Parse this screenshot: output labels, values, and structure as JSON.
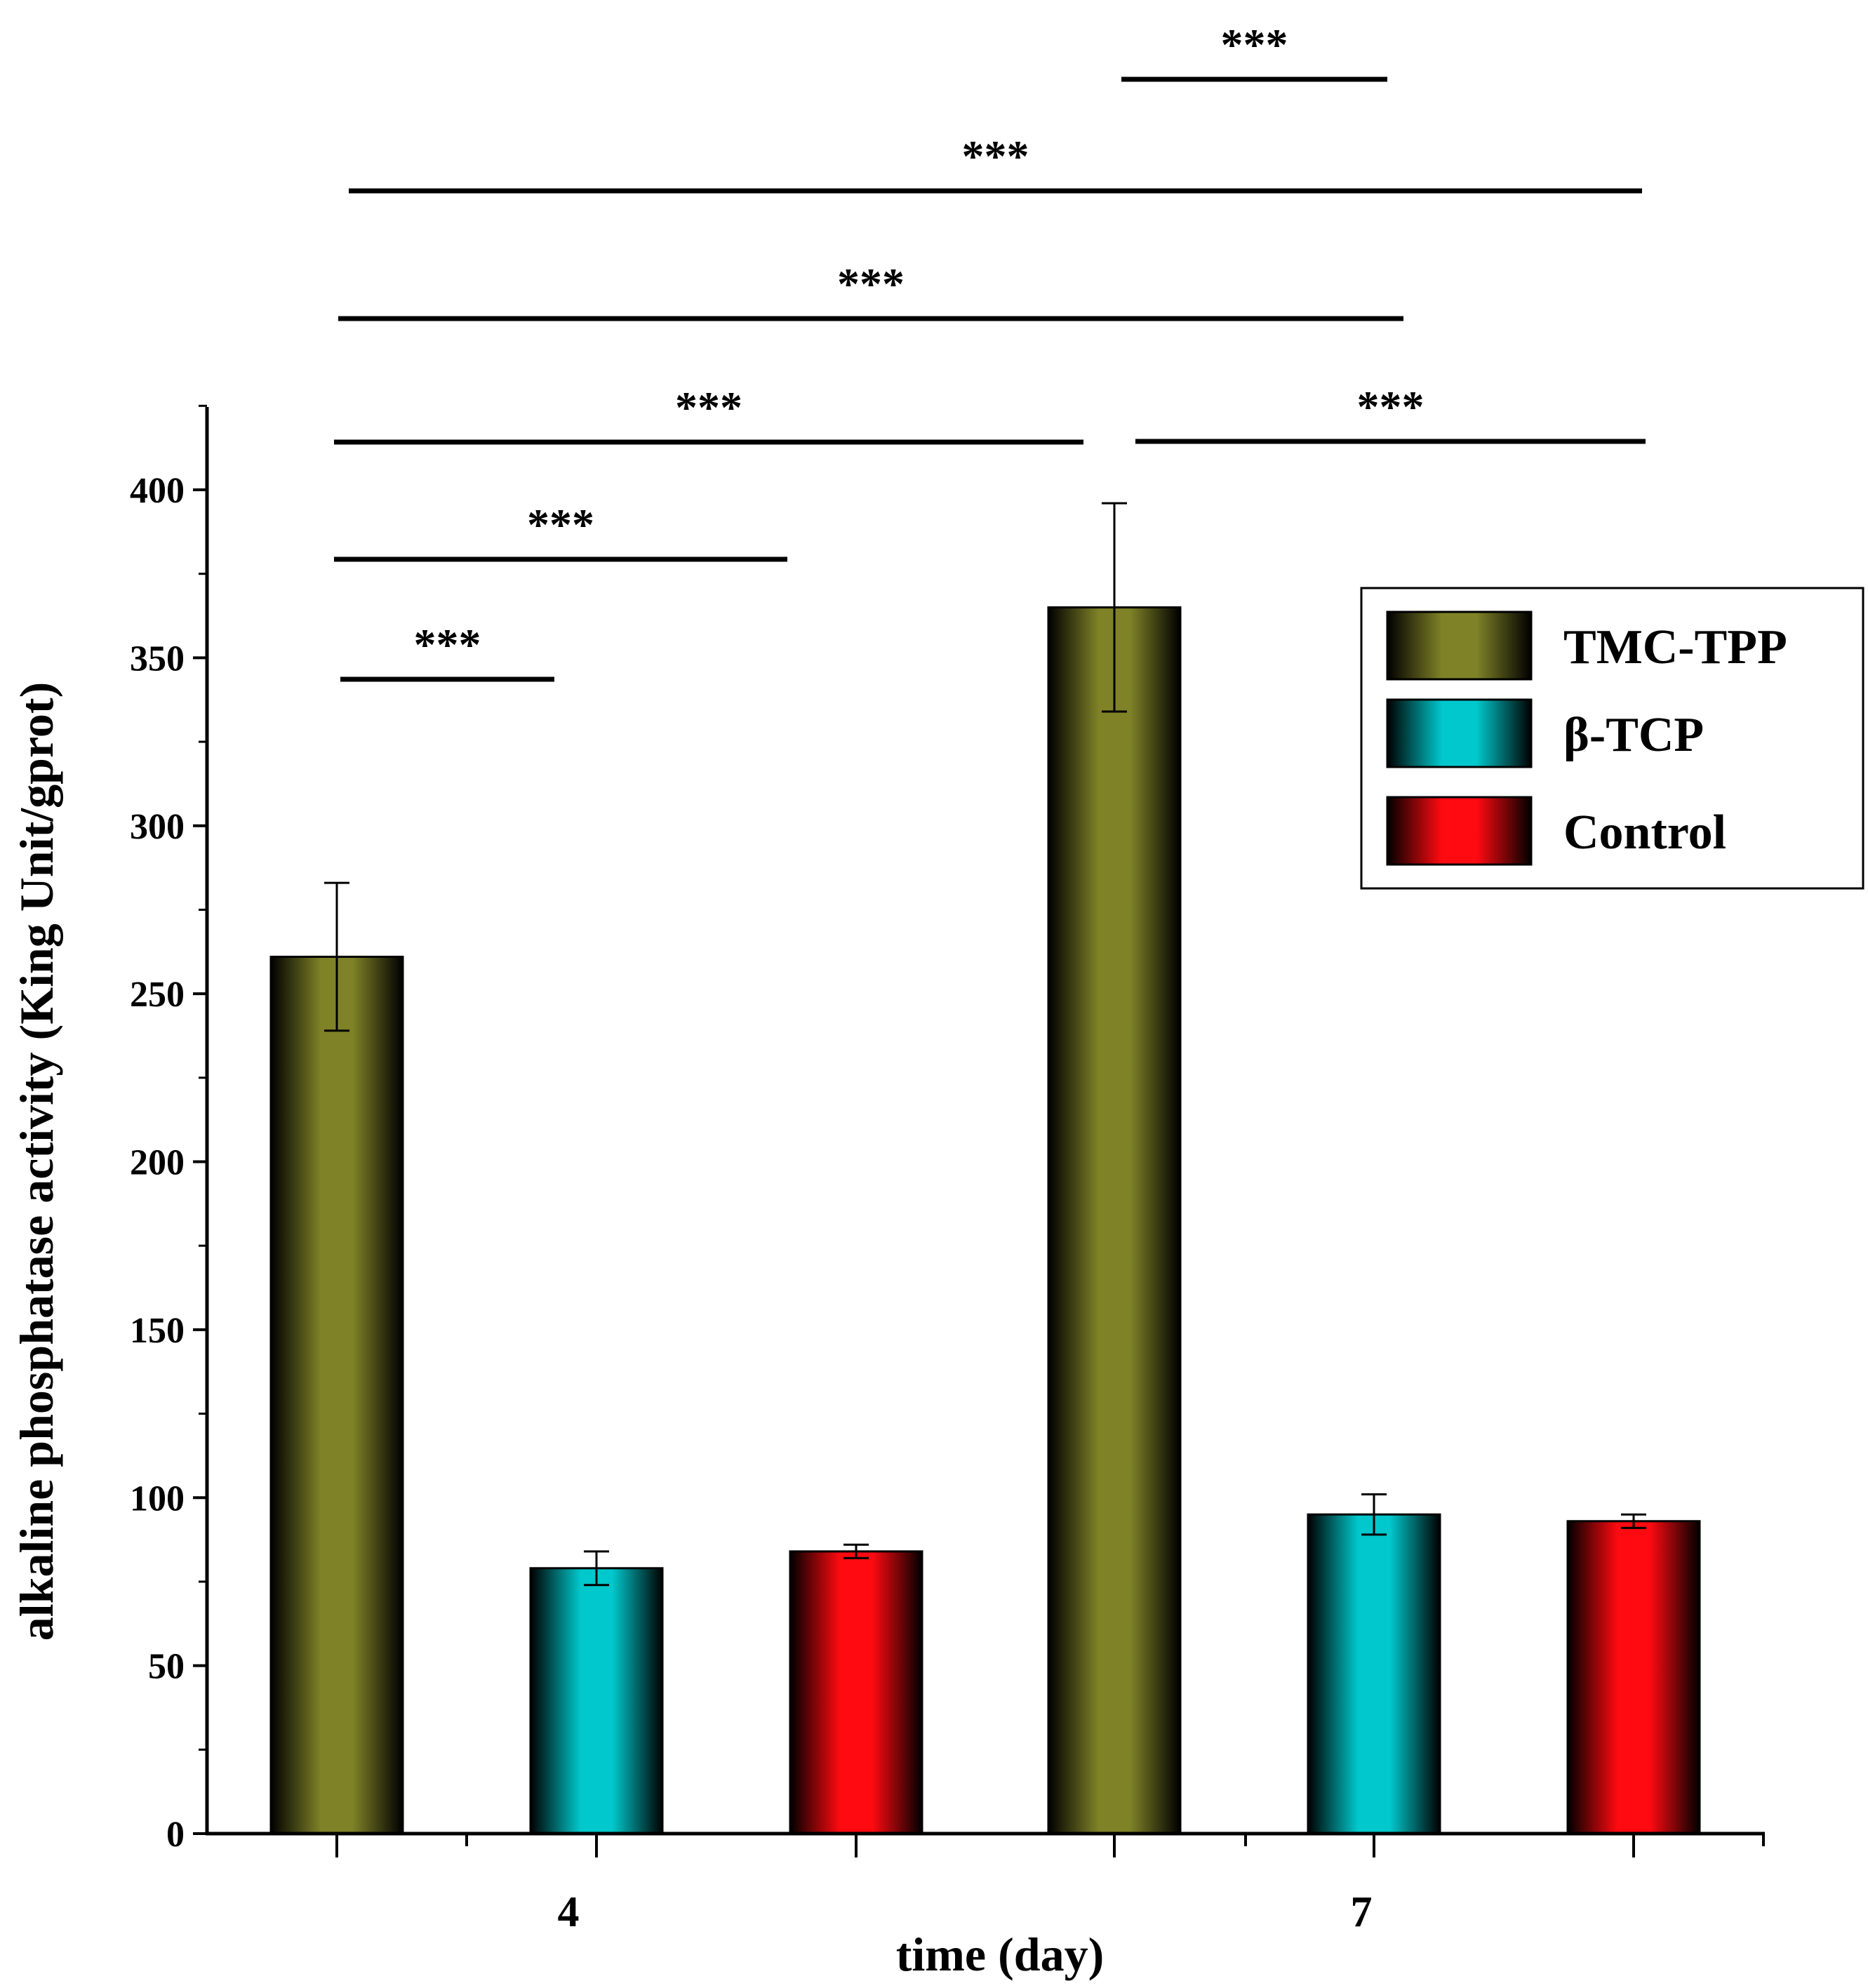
{
  "chart_data": {
    "type": "bar",
    "xlabel": "time (day)",
    "ylabel": "alkaline phosphatase activity (King Unit/gprot)",
    "categories": [
      "4",
      "7"
    ],
    "ylim": [
      0,
      420
    ],
    "yticks": [
      0,
      50,
      100,
      150,
      200,
      250,
      300,
      350,
      400
    ],
    "series": [
      {
        "name": "TMC-TPP",
        "color": "#7f8227",
        "values": [
          261,
          365
        ],
        "errors": [
          22,
          31
        ]
      },
      {
        "name": "β-TCP",
        "color": "#00c8cc",
        "values": [
          79,
          95
        ],
        "errors": [
          5,
          6
        ]
      },
      {
        "name": "Control",
        "color": "#ff0a10",
        "values": [
          84,
          93
        ],
        "errors": [
          2,
          2
        ]
      }
    ],
    "legend": {
      "position": "top-right",
      "entries": [
        "TMC-TPP",
        "β-TCP",
        "Control"
      ]
    },
    "significance": [
      {
        "label": "***",
        "from": "4-TMC-TPP",
        "to": "4-β-TCP"
      },
      {
        "label": "***",
        "from": "4-TMC-TPP",
        "to": "4-Control"
      },
      {
        "label": "***",
        "from": "4-TMC-TPP",
        "to": "7-TMC-TPP"
      },
      {
        "label": "***",
        "from": "7-TMC-TPP",
        "to": "7-Control"
      },
      {
        "label": "***",
        "from": "4-TMC-TPP",
        "to": "7-β-TCP"
      },
      {
        "label": "***",
        "from": "4-TMC-TPP",
        "to": "7-Control"
      },
      {
        "label": "***",
        "from": "7-TMC-TPP",
        "to": "7-β-TCP"
      }
    ]
  }
}
